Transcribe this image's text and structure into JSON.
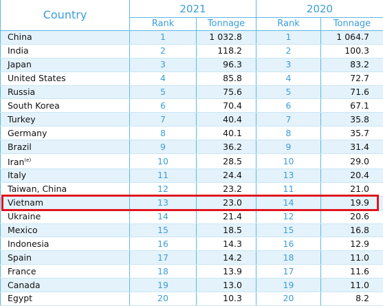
{
  "table": {
    "header": {
      "country": "Country",
      "years": [
        "2021",
        "2020"
      ],
      "columns": [
        "Rank",
        "Tonnage",
        "Rank",
        "Tonnage"
      ]
    },
    "rows": [
      [
        "China",
        1,
        "1 032.8",
        1,
        "1 064.7"
      ],
      [
        "India",
        2,
        "118.2",
        2,
        "100.3"
      ],
      [
        "Japan",
        3,
        "96.3",
        3,
        "83.2"
      ],
      [
        "United States",
        4,
        "85.8",
        4,
        "72.7"
      ],
      [
        "Russia",
        5,
        "75.6",
        5,
        "71.6"
      ],
      [
        "South Korea",
        6,
        "70.4",
        6,
        "67.1"
      ],
      [
        "Turkey",
        7,
        "40.4",
        7,
        "35.8"
      ],
      [
        "Germany",
        8,
        "40.1",
        8,
        "35.7"
      ],
      [
        "Brazil",
        9,
        "36.2",
        9,
        "31.4"
      ],
      [
        {
          "text": "Iran",
          "sup": "(e)"
        },
        10,
        "28.5",
        10,
        "29.0"
      ],
      [
        "Italy",
        11,
        "24.4",
        13,
        "20.4"
      ],
      [
        "Taiwan, China",
        12,
        "23.2",
        11,
        "21.0"
      ],
      [
        "Vietnam",
        13,
        "23.0",
        14,
        "19.9"
      ],
      [
        "Ukraine",
        14,
        "21.4",
        12,
        "20.6"
      ],
      [
        "Mexico",
        15,
        "18.5",
        15,
        "16.8"
      ],
      [
        "Indonesia",
        16,
        "14.3",
        16,
        "12.9"
      ],
      [
        "Spain",
        17,
        "14.2",
        18,
        "11.0"
      ],
      [
        "France",
        18,
        "13.9",
        17,
        "11.6"
      ],
      [
        "Canada",
        19,
        "13.0",
        19,
        "11.0"
      ],
      [
        "Egypt",
        20,
        "10.3",
        20,
        "8.2"
      ]
    ],
    "highlighted_row": 12
  }
}
